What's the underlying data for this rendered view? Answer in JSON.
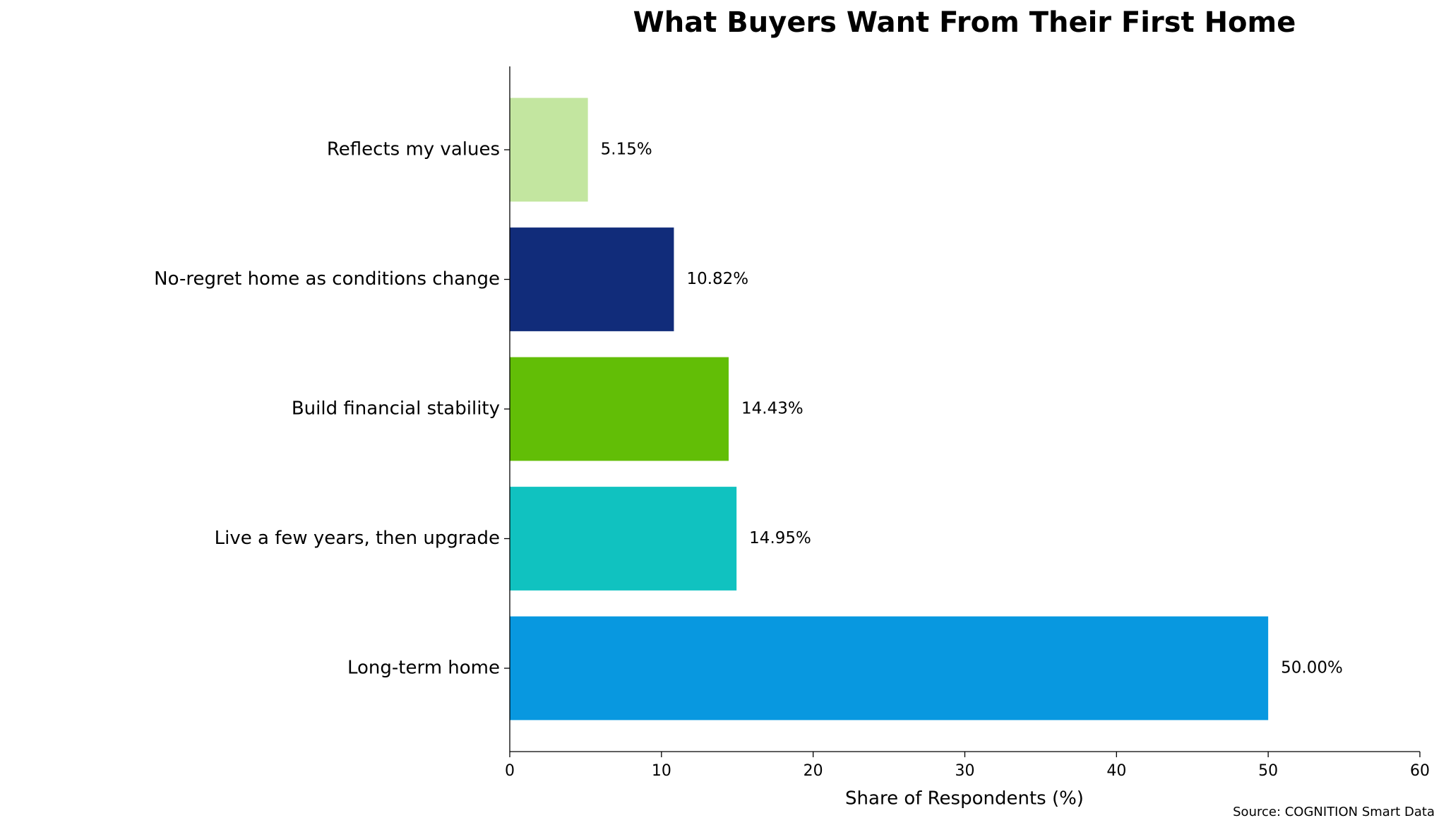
{
  "chart_data": {
    "type": "barh",
    "title": "What Buyers Want From Their First Home",
    "xlabel": "Share of Respondents (%)",
    "source": "Source: COGNITION Smart Data",
    "categories": [
      "Long-term home",
      "Live a few years, then upgrade",
      "Build financial stability",
      "No-regret home as conditions change",
      "Reflects my values"
    ],
    "values": [
      50.0,
      14.95,
      14.43,
      10.82,
      5.15
    ],
    "value_labels": [
      "50.00%",
      "14.95%",
      "14.43%",
      "10.82%",
      "5.15%"
    ],
    "colors": [
      "#0898e0",
      "#10c2c0",
      "#62be06",
      "#112c7a",
      "#c3e6a0"
    ],
    "xlim": [
      0,
      60
    ],
    "xticks": [
      0,
      10,
      20,
      30,
      40,
      50,
      60
    ],
    "grid": false
  }
}
